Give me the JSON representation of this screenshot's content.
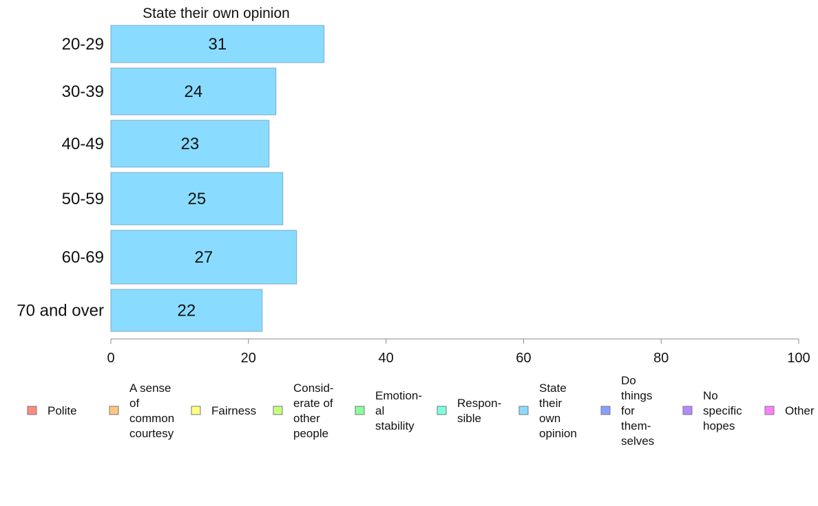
{
  "chart_data": {
    "type": "bar",
    "orientation": "horizontal",
    "title": "State their own opinion",
    "categories": [
      "20-29",
      "30-39",
      "40-49",
      "50-59",
      "60-69",
      "70 and over"
    ],
    "series": [
      {
        "name": "State their own opinion",
        "values": [
          31,
          24,
          23,
          25,
          27,
          22
        ],
        "value_labels": [
          "31",
          "24",
          "23",
          "25",
          "27",
          "22"
        ],
        "color": "#89dcff"
      }
    ],
    "xlim": [
      0,
      100
    ],
    "xticks": [
      0,
      20,
      40,
      60,
      80,
      100
    ],
    "xtick_labels": [
      "0",
      "20",
      "40",
      "60",
      "80",
      "100"
    ],
    "grid": false,
    "legend_position": "bottom",
    "legend": [
      {
        "lines": [
          "Polite"
        ],
        "color": "#ff8a80"
      },
      {
        "lines": [
          "A sense",
          "of",
          "common",
          "courtesy"
        ],
        "color": "#ffc680"
      },
      {
        "lines": [
          "Fairness"
        ],
        "color": "#ffff80"
      },
      {
        "lines": [
          "Consid-",
          "erate of",
          "other",
          "people"
        ],
        "color": "#c6ff80"
      },
      {
        "lines": [
          "Emotion-",
          "al",
          "stability"
        ],
        "color": "#89ff9e"
      },
      {
        "lines": [
          "Respon-",
          "sible"
        ],
        "color": "#80ffde"
      },
      {
        "lines": [
          "State",
          "their",
          "own",
          "opinion"
        ],
        "color": "#89dcff"
      },
      {
        "lines": [
          "Do",
          "things",
          "for",
          "them-",
          "selves"
        ],
        "color": "#8a9eff"
      },
      {
        "lines": [
          "No",
          "specific",
          "hopes"
        ],
        "color": "#b48aff"
      },
      {
        "lines": [
          "Other"
        ],
        "color": "#ff80ff"
      }
    ]
  }
}
